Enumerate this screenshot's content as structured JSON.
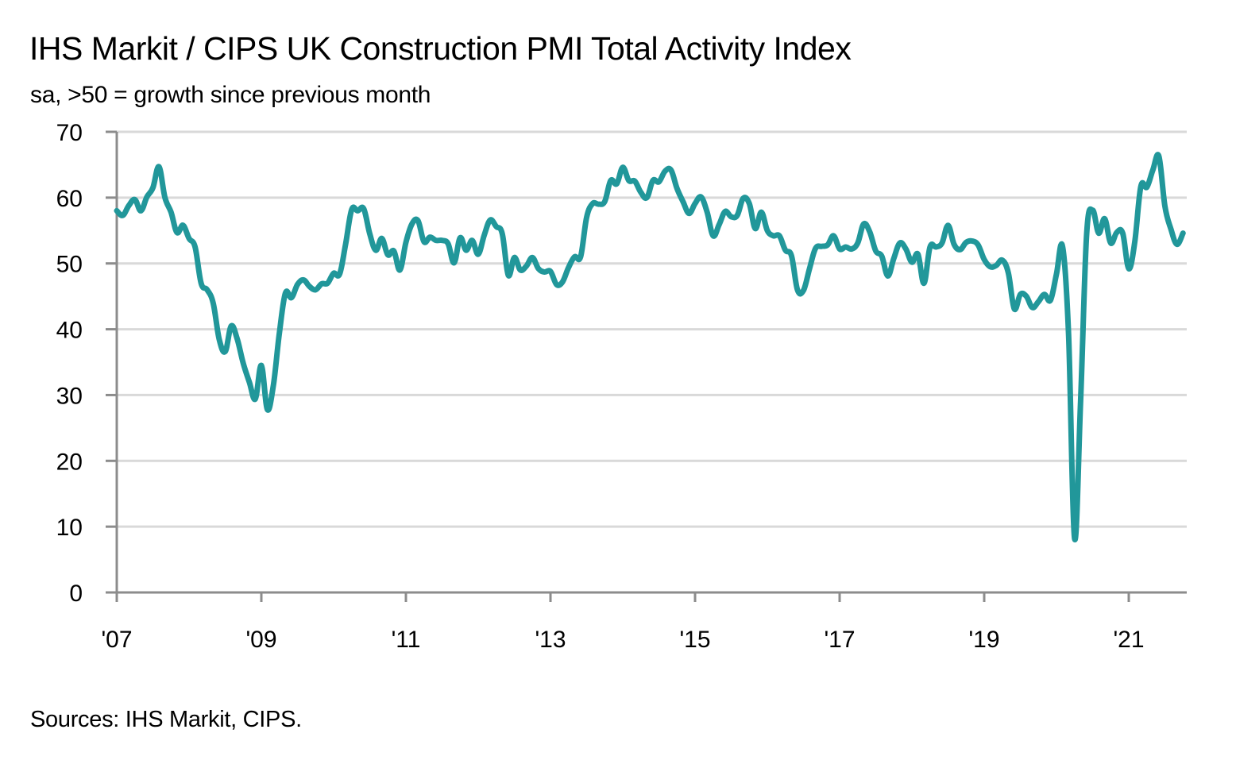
{
  "chart_data": {
    "type": "line",
    "title": "IHS Markit / CIPS UK Construction PMI Total Activity Index",
    "subtitle": "sa, >50 = growth since previous month",
    "source": "Sources: IHS Markit, CIPS.",
    "xlabel": "",
    "ylabel": "",
    "ylim": [
      0,
      70
    ],
    "yticks": [
      0,
      10,
      20,
      30,
      40,
      50,
      60,
      70
    ],
    "ytick_labels": [
      "0",
      "10",
      "20",
      "30",
      "40",
      "50",
      "60",
      "70"
    ],
    "xlim": [
      "2007-01",
      "2021-11"
    ],
    "xticks": [
      "2007-01",
      "2009-01",
      "2011-01",
      "2013-01",
      "2015-01",
      "2017-01",
      "2019-01",
      "2021-01"
    ],
    "xtick_labels": [
      "'07",
      "'09",
      "'11",
      "'13",
      "'15",
      "'17",
      "'19",
      "'21"
    ],
    "grid": true,
    "legend": "none",
    "series": [
      {
        "name": "UK Construction PMI Total Activity Index",
        "color": "#21979a",
        "start": "2007-01",
        "frequency": "monthly",
        "values": [
          58.0,
          57.3,
          58.8,
          59.7,
          58.0,
          60.1,
          61.5,
          64.7,
          60.0,
          57.8,
          54.7,
          55.8,
          53.8,
          52.5,
          47.0,
          46.0,
          44.0,
          38.5,
          36.6,
          40.5,
          38.5,
          34.8,
          32.0,
          29.4,
          34.5,
          27.8,
          31.5,
          39.5,
          45.5,
          44.8,
          46.8,
          47.5,
          46.5,
          46.0,
          46.9,
          47.0,
          48.5,
          48.4,
          53.0,
          58.2,
          58.0,
          58.3,
          54.5,
          52.0,
          53.8,
          51.3,
          51.9,
          49.0,
          53.2,
          56.0,
          56.5,
          53.3,
          54.0,
          53.5,
          53.5,
          53.0,
          50.1,
          53.9,
          52.0,
          53.5,
          51.4,
          54.3,
          56.6,
          55.6,
          54.5,
          48.2,
          50.9,
          49.0,
          49.6,
          50.9,
          49.2,
          48.7,
          48.8,
          46.8,
          47.2,
          49.4,
          51.0,
          51.0,
          57.0,
          59.1,
          59.0,
          59.4,
          62.6,
          62.1,
          64.6,
          62.6,
          62.5,
          60.8,
          60.0,
          62.6,
          62.4,
          64.0,
          64.2,
          61.4,
          59.4,
          57.6,
          59.1,
          60.1,
          57.8,
          54.2,
          55.9,
          57.9,
          57.1,
          57.3,
          59.9,
          59.1,
          55.3,
          57.8,
          55.0,
          54.2,
          54.2,
          52.0,
          51.2,
          46.0,
          45.9,
          49.2,
          52.3,
          52.6,
          52.8,
          54.2,
          52.2,
          52.5,
          52.2,
          53.1,
          56.0,
          54.8,
          51.9,
          51.1,
          48.1,
          50.8,
          53.1,
          52.2,
          50.2,
          51.4,
          47.0,
          52.5,
          52.5,
          53.1,
          55.8,
          52.9,
          52.1,
          53.2,
          53.4,
          52.8,
          50.6,
          49.5,
          49.7,
          50.5,
          48.6,
          43.1,
          45.3,
          45.0,
          43.3,
          44.2,
          45.3,
          44.4,
          48.4,
          52.6,
          39.3,
          8.2,
          28.9,
          54.3,
          58.1,
          54.6,
          56.8,
          53.1,
          54.7,
          54.6,
          49.2,
          53.3,
          61.7,
          61.6,
          64.2,
          66.3,
          58.7,
          55.2,
          52.9,
          54.6
        ]
      }
    ]
  }
}
